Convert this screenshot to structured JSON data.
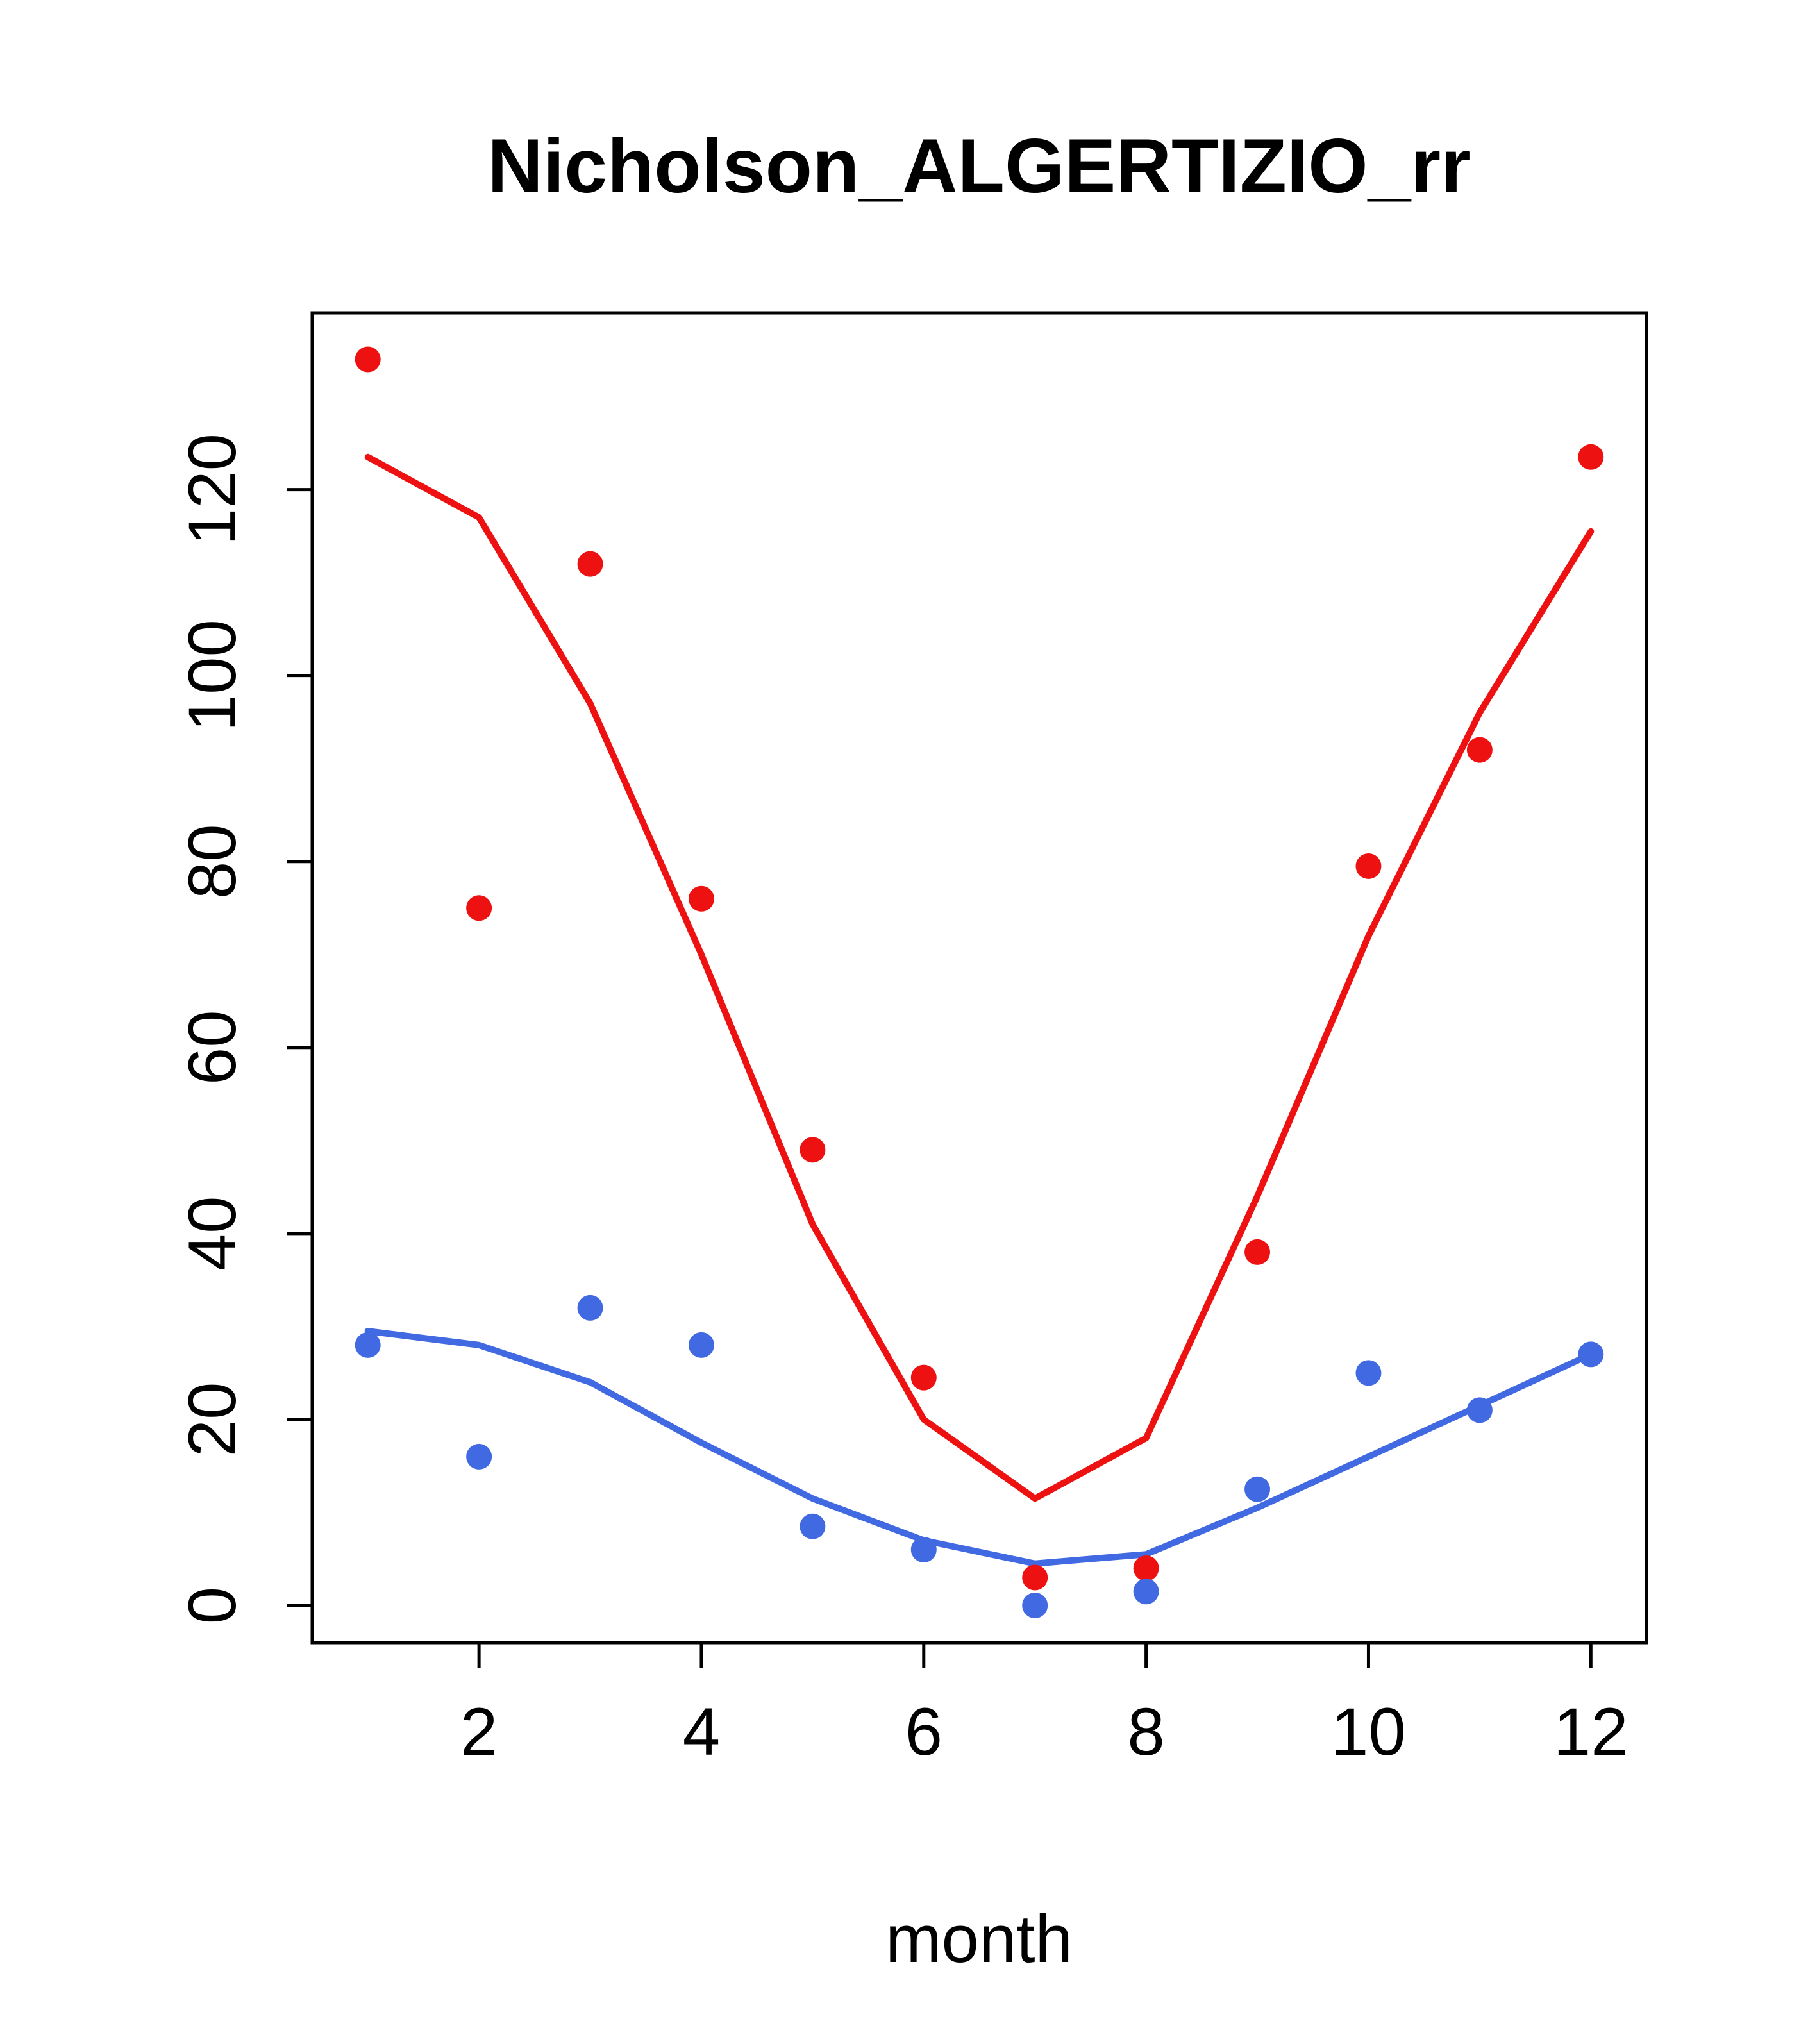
{
  "chart_data": {
    "type": "scatter",
    "title": "Nicholson_ALGERTIZIO_rr",
    "xlabel": "month",
    "ylabel": "",
    "x": [
      1,
      2,
      3,
      4,
      5,
      6,
      7,
      8,
      9,
      10,
      11,
      12
    ],
    "xlim": [
      0.5,
      12.5
    ],
    "ylim": [
      -4,
      139
    ],
    "xticks": [
      2,
      4,
      6,
      8,
      10,
      12
    ],
    "yticks": [
      0,
      20,
      40,
      60,
      80,
      100,
      120
    ],
    "grid": false,
    "legend": null,
    "colors": {
      "red_series": "#ee1111",
      "blue_series": "#4169e1",
      "axis": "#000000"
    },
    "series": [
      {
        "name": "red-smooth-line",
        "type": "line",
        "color": "#ee1111",
        "values": [
          123.5,
          117.0,
          97.0,
          70.0,
          41.0,
          20.0,
          11.5,
          18.0,
          44.0,
          72.0,
          96.0,
          115.5
        ]
      },
      {
        "name": "blue-smooth-line",
        "type": "line",
        "color": "#4169e1",
        "values": [
          29.5,
          28.0,
          24.0,
          17.5,
          11.5,
          7.0,
          4.5,
          5.5,
          10.5,
          16.0,
          21.5,
          27.0
        ]
      },
      {
        "name": "red-points",
        "type": "points",
        "color": "#ee1111",
        "values": [
          134.0,
          75.0,
          112.0,
          76.0,
          49.0,
          24.5,
          3.0,
          4.0,
          38.0,
          79.5,
          92.0,
          123.5
        ]
      },
      {
        "name": "blue-points",
        "type": "points",
        "color": "#4169e1",
        "values": [
          28.0,
          16.0,
          32.0,
          28.0,
          8.5,
          6.0,
          0.0,
          1.5,
          12.5,
          25.0,
          21.0,
          27.0
        ]
      }
    ]
  }
}
